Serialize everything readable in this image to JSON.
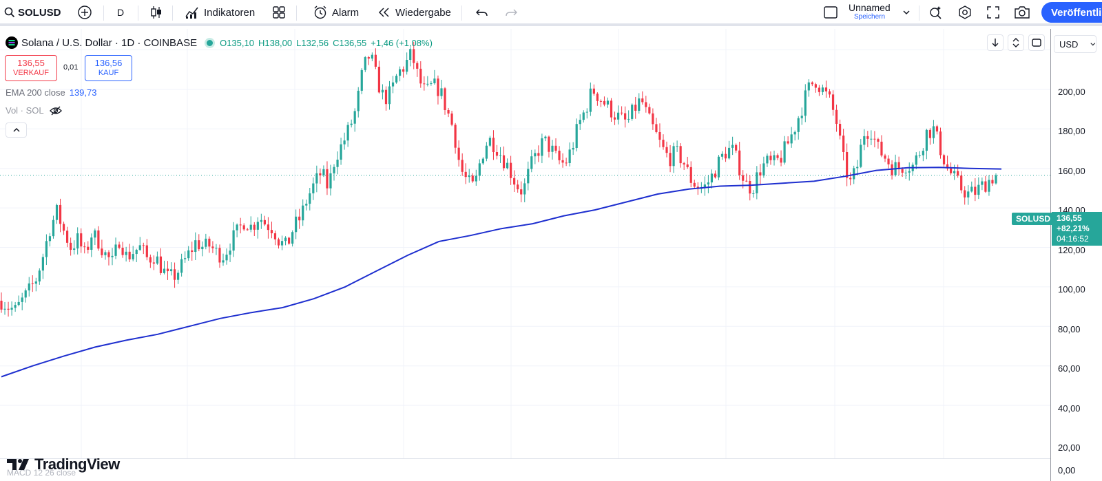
{
  "toolbar": {
    "symbol": "SOLUSD",
    "interval": "D",
    "indicators_label": "Indikatoren",
    "alert_label": "Alarm",
    "replay_label": "Wiedergabe",
    "layout_name": "Unnamed",
    "layout_status": "Speichern",
    "publish_label": "Veröffentli"
  },
  "legend": {
    "title": "Solana / U.S. Dollar · 1D · COINBASE",
    "open": "O135,10",
    "high": "H138,00",
    "low": "L132,56",
    "close": "C136,55",
    "change": "+1,46 (+1,08%)",
    "sell_price": "136,55",
    "sell_label": "VERKAUF",
    "spread": "0,01",
    "buy_price": "136,56",
    "buy_label": "KAUF",
    "ema_label": "EMA 200 close",
    "ema_value": "139,73",
    "vol_label": "Vol · SOL"
  },
  "price_axis": {
    "currency": "USD",
    "labels": [
      "200,00",
      "180,00",
      "160,00",
      "140,00",
      "120,00",
      "100,00",
      "80,00",
      "60,00",
      "40,00",
      "20,00",
      "0,00"
    ],
    "symbol_tag": "SOLUSD",
    "last_price": "136,55",
    "last_change": "+82,21%",
    "countdown": "04:16:52"
  },
  "branding": {
    "logo_text": "TradingView",
    "macd_label": "MACD 12 26 close"
  },
  "colors": {
    "up": "#26a69a",
    "down": "#f23645",
    "ema": "#1e2fcf",
    "accent": "#2962ff"
  },
  "chart_data": {
    "type": "candlestick",
    "title": "Solana / U.S. Dollar · 1D · COINBASE",
    "ylim": [
      0,
      212
    ],
    "y_ticks": [
      200,
      180,
      160,
      140,
      120,
      100,
      80,
      60,
      40,
      20,
      0
    ],
    "last_close": 136.55,
    "close_path": [
      73,
      70,
      68,
      73,
      78,
      84,
      96,
      110,
      118,
      108,
      100,
      104,
      96,
      107,
      103,
      96,
      92,
      105,
      95,
      98,
      100,
      94,
      96,
      90,
      84,
      86,
      91,
      97,
      103,
      100,
      101,
      97,
      96,
      103,
      108,
      114,
      110,
      116,
      112,
      110,
      103,
      100,
      110,
      115,
      125,
      132,
      138,
      130,
      146,
      152,
      160,
      170,
      190,
      198,
      185,
      175,
      178,
      188,
      192,
      198,
      185,
      178,
      182,
      180,
      170,
      160,
      140,
      133,
      130,
      146,
      155,
      152,
      146,
      140,
      132,
      128,
      140,
      148,
      154,
      150,
      144,
      142,
      150,
      162,
      170,
      180,
      176,
      172,
      168,
      165,
      163,
      170,
      175,
      165,
      158,
      150,
      145,
      148,
      144,
      135,
      131,
      130,
      135,
      142,
      148,
      150,
      142,
      132,
      130,
      139,
      143,
      142,
      145,
      152,
      160,
      170,
      180,
      185,
      180,
      175,
      165,
      145,
      132,
      140,
      158,
      160,
      150,
      146,
      141,
      140,
      142,
      141,
      148,
      158,
      160,
      150,
      140,
      135,
      130,
      127,
      128,
      131,
      134,
      137
    ],
    "ema_path": [
      34.5,
      40,
      45,
      49.5,
      53,
      56,
      60,
      64,
      67,
      69.5,
      74,
      80,
      88,
      96,
      103,
      106,
      109.5,
      112,
      116,
      119,
      123,
      127,
      129.5,
      131,
      131.5,
      132.5,
      133.5,
      136,
      139,
      140.3,
      140.5,
      140,
      139.7
    ],
    "series": [
      {
        "name": "SOLUSD",
        "kind": "candles"
      },
      {
        "name": "EMA 200 close",
        "kind": "line"
      }
    ]
  }
}
